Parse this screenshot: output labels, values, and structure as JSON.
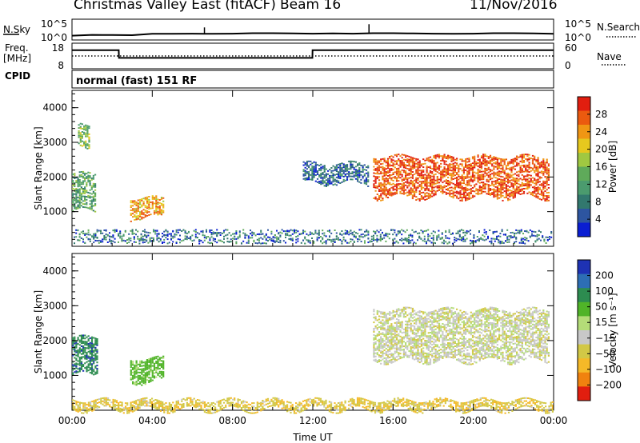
{
  "header": {
    "title": "Christmas Valley East (fitACF)",
    "beam": "Beam 16",
    "date": "11/Nov/2016"
  },
  "noise_panel": {
    "left_label": "N.Sky",
    "right_label": "N.Search",
    "left_ticks": [
      "10^5",
      "10^0"
    ],
    "right_ticks": [
      "10^5",
      "10^0"
    ]
  },
  "freq_panel": {
    "left_label_line1": "Freq.",
    "left_label_line2": "[MHz]",
    "right_label": "Nave",
    "left_ticks": [
      "18",
      "8"
    ],
    "right_ticks": [
      "60",
      "0"
    ]
  },
  "cpid": {
    "label": "CPID",
    "value": "normal (fast) 151 RF"
  },
  "colors": {
    "power": [
      "#0a1ed2",
      "#2d55a0",
      "#32786e",
      "#4b9b6e",
      "#5faa5a",
      "#a0c841",
      "#e6c81e",
      "#f09614",
      "#eb5a0f",
      "#e11e0f"
    ],
    "velocity": [
      "#e11e0f",
      "#f0820f",
      "#f5b928",
      "#d2c846",
      "#c8c8c8",
      "#b4dc78",
      "#50b428",
      "#2d8c50",
      "#2d6eb4",
      "#1e32b4"
    ]
  },
  "chart_data": [
    {
      "type": "line",
      "title": "N.Sky / N.Search",
      "x": [
        "00:00",
        "01:00",
        "02:00",
        "03:00",
        "04:00",
        "05:00",
        "06:00",
        "07:00",
        "08:00",
        "09:00",
        "10:00",
        "11:00",
        "12:00",
        "13:00",
        "14:00",
        "15:00",
        "16:00",
        "17:00",
        "18:00",
        "19:00",
        "20:00",
        "21:00",
        "22:00",
        "23:00",
        "24:00"
      ],
      "series": [
        {
          "name": "N.Sky",
          "values": [
            6,
            10,
            9,
            8,
            20,
            20,
            22,
            20,
            22,
            30,
            30,
            25,
            22,
            25,
            22,
            30,
            30,
            25,
            22,
            20,
            22,
            30,
            30,
            25,
            20
          ]
        }
      ],
      "yscale": "log",
      "ylim": [
        1,
        100000
      ]
    },
    {
      "type": "line",
      "title": "Freq. / Nave",
      "x": [
        0,
        2.33,
        2.34,
        11.98,
        11.99,
        24
      ],
      "series": [
        {
          "name": "Freq.",
          "values": [
            16,
            16,
            12,
            12,
            16,
            16
          ]
        },
        {
          "name": "Nave",
          "values": [
            30,
            30,
            30,
            30,
            30,
            30
          ]
        }
      ],
      "ylim": [
        8,
        18
      ],
      "y2lim": [
        0,
        60
      ]
    },
    {
      "type": "heatmap",
      "title": "Power [dB]",
      "x_label": "Time UT",
      "ylabel": "Slant Range [km]",
      "xlim": [
        "00:00",
        "24:00"
      ],
      "ylim": [
        0,
        4500
      ],
      "x_ticks": [
        "00:00",
        "04:00",
        "08:00",
        "12:00",
        "16:00",
        "20:00",
        "00:00"
      ],
      "y_ticks": [
        1000,
        2000,
        3000,
        4000
      ],
      "colorbar_label": "Power [dB]",
      "colorbar_ticks": [
        4,
        8,
        12,
        16,
        20,
        24,
        28
      ],
      "regions": [
        {
          "t": [
            0.0,
            1.2
          ],
          "range": [
            1000,
            2100
          ],
          "value": 12
        },
        {
          "t": [
            0.3,
            0.9
          ],
          "range": [
            2800,
            3500
          ],
          "value": 14
        },
        {
          "t": [
            2.9,
            4.6
          ],
          "range": [
            800,
            1400
          ],
          "value": 22
        },
        {
          "t": [
            15.0,
            23.8
          ],
          "range": [
            1400,
            2600
          ],
          "value": 26
        },
        {
          "t": [
            11.5,
            14.8
          ],
          "range": [
            1800,
            2400
          ],
          "value": 6
        }
      ]
    },
    {
      "type": "heatmap",
      "title": "Velocity [m s^-1]",
      "x_label": "Time UT",
      "ylabel": "Slant Range [km]",
      "xlim": [
        "00:00",
        "24:00"
      ],
      "ylim": [
        0,
        4500
      ],
      "x_ticks": [
        "00:00",
        "04:00",
        "08:00",
        "12:00",
        "16:00",
        "20:00",
        "00:00"
      ],
      "y_ticks": [
        1000,
        2000,
        3000,
        4000
      ],
      "colorbar_label": "Velocity [m s⁻¹]",
      "colorbar_ticks": [
        200,
        100,
        50,
        15,
        -15,
        -50,
        -100,
        -200
      ],
      "regions": [
        {
          "t": [
            0.0,
            1.3
          ],
          "range": [
            1000,
            2100
          ],
          "value": 180
        },
        {
          "t": [
            2.9,
            4.6
          ],
          "range": [
            800,
            1500
          ],
          "value": 70
        },
        {
          "t": [
            15.0,
            23.8
          ],
          "range": [
            1400,
            2900
          ],
          "value": 0
        },
        {
          "t": [
            0.0,
            24.0
          ],
          "range": [
            0,
            300
          ],
          "value": -40
        }
      ]
    }
  ]
}
